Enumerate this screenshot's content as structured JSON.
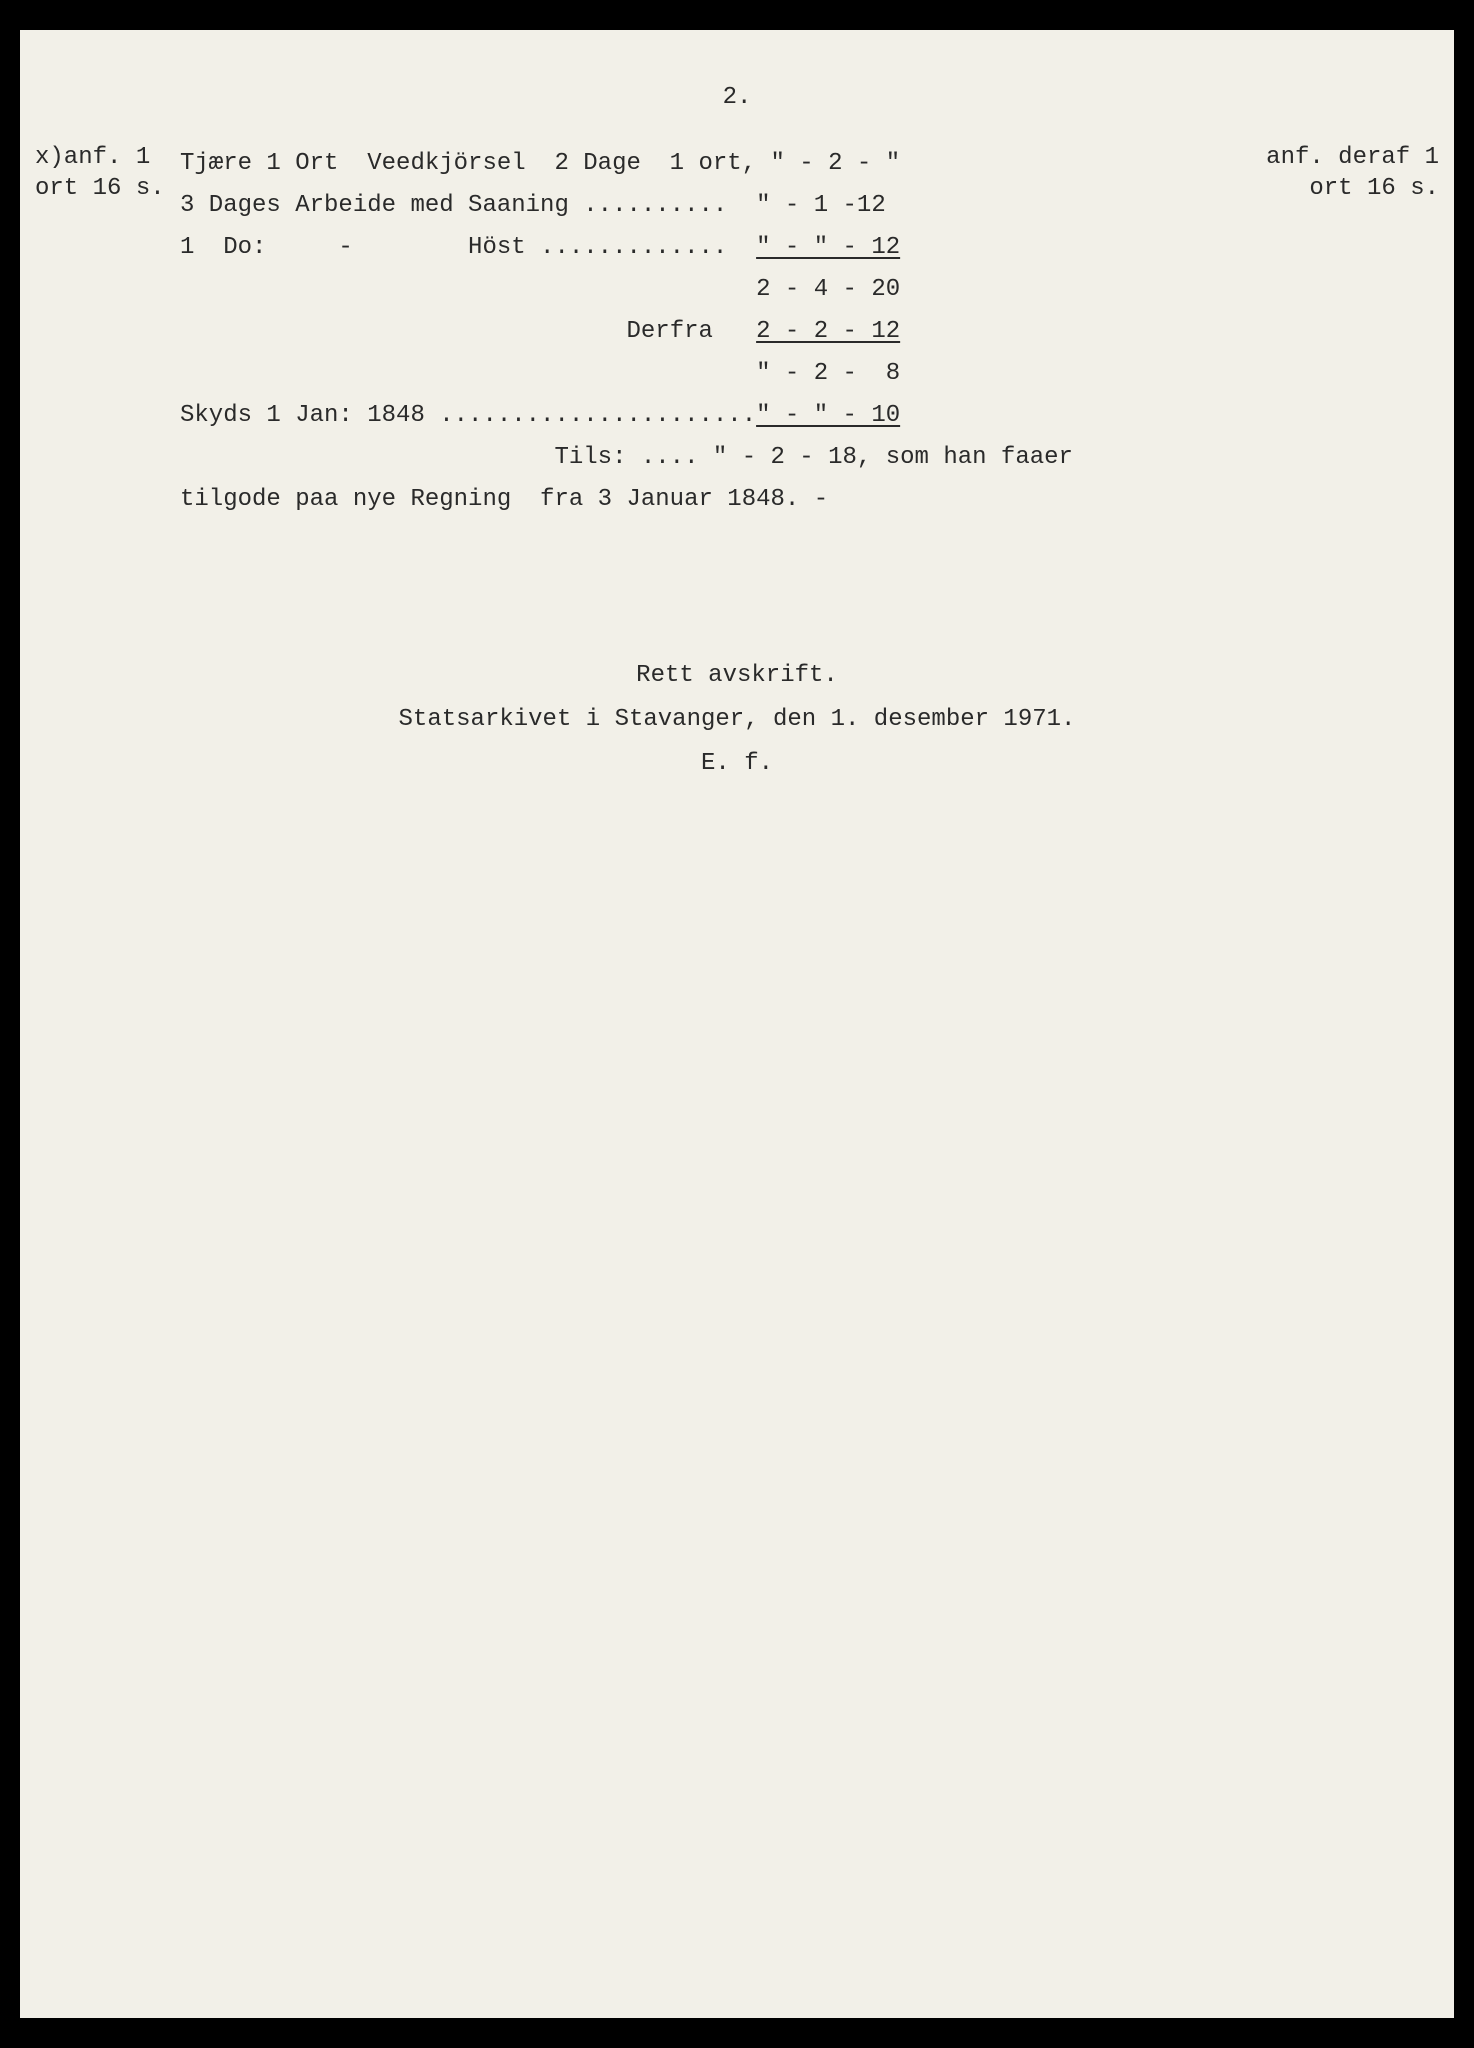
{
  "page_number": "2.",
  "margin_left": "x)anf.\n1 ort 16 s.",
  "margin_right": "anf. deraf 1 ort\n16 s.",
  "line1": "Tjære 1 Ort  Veedkjörsel  2 Dage  1 ort, \" - 2 - \"",
  "line2": "3 Dages Arbeide med Saaning ..........  \" - 1 -12",
  "line3": "1  Do:     -        Höst .............  ",
  "line3_amt": "\" - \" - 12",
  "line4_amt": "2 - 4 - 20",
  "line5_label": "Derfra   ",
  "line5_amt": "2 - 2 - 12",
  "line6_amt": "\" - 2 -  8",
  "line7": "Skyds 1 Jan: 1848 ......................",
  "line7_amt": "\" - \" - 10",
  "line8": "                          Tils: .... \" - 2 - 18, som han faaer",
  "line9": "tilgode paa nye Regning  fra 3 Januar 1848. -",
  "cert1": "Rett avskrift.",
  "cert2": "Statsarkivet i Stavanger, den 1. desember 1971.",
  "cert3": "E. f.",
  "colors": {
    "page_bg": "#f2f0e8",
    "text": "#2a2a2a",
    "frame": "#000000"
  },
  "typography": {
    "font_family": "Courier New",
    "font_size_pt": 18
  }
}
